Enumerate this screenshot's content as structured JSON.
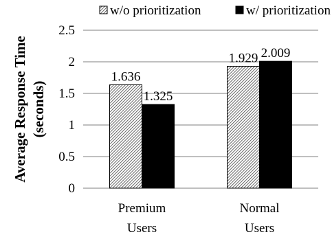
{
  "chart_data": {
    "type": "bar",
    "categories": [
      [
        "Premium",
        "Users"
      ],
      [
        "Normal",
        "Users"
      ]
    ],
    "series": [
      {
        "name": "w/o prioritization",
        "values": [
          1.636,
          1.929
        ],
        "value_labels": [
          "1.636",
          "1.929"
        ],
        "fill": "hatched"
      },
      {
        "name": "w/ prioritization",
        "values": [
          1.325,
          2.009
        ],
        "value_labels": [
          "1.325",
          "2.009"
        ],
        "fill": "#000000"
      }
    ],
    "ylabel": [
      "Average Response Time",
      "(seconds)"
    ],
    "xlabel": "",
    "ylim": [
      0,
      2.5
    ],
    "yticks": [
      0,
      0.5,
      1,
      1.5,
      2,
      2.5
    ],
    "ytick_labels": [
      "0",
      "0.5",
      "1",
      "1.5",
      "2",
      "2.5"
    ],
    "grid": "horizontal",
    "legend": "top"
  }
}
